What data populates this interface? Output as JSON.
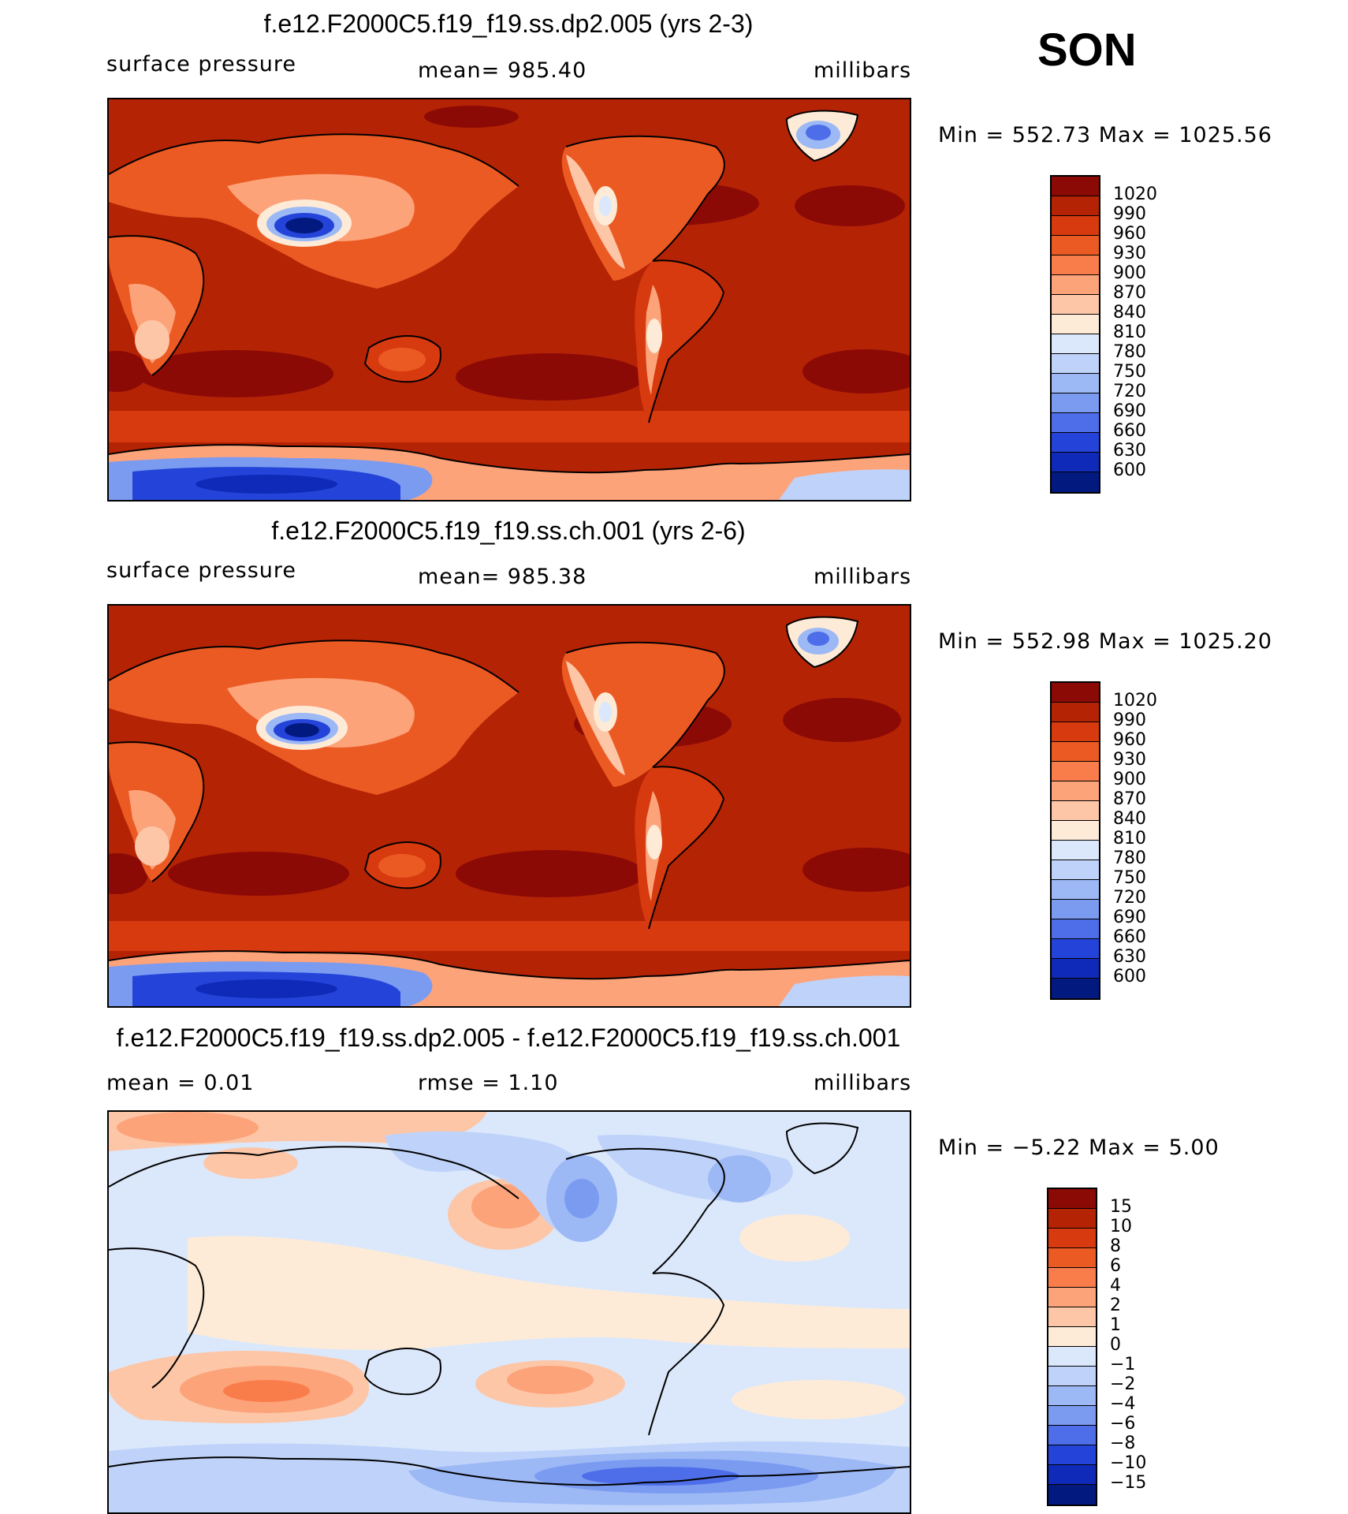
{
  "season": "SON",
  "units": "millibars",
  "panels": [
    {
      "title": "f.e12.F2000C5.f19_f19.ss.dp2.005 (yrs 2-3)",
      "left_label": "surface pressure",
      "center_label": "mean=  985.40",
      "right_label": "millibars",
      "minmax": "Min  =  552.73  Max  =  1025.56",
      "levels": [
        "1020",
        "990",
        "960",
        "930",
        "900",
        "870",
        "840",
        "810",
        "780",
        "750",
        "720",
        "690",
        "660",
        "630",
        "600"
      ],
      "colors": [
        "#8c0a06",
        "#b52305",
        "#d73a0f",
        "#ec5a23",
        "#f97d4b",
        "#fca37a",
        "#fdc6a7",
        "#fdebd8",
        "#dbe8fb",
        "#bfd3fa",
        "#9cb8f5",
        "#7a9bf0",
        "#4d6ee8",
        "#2444d9",
        "#0f2ab8",
        "#021a80"
      ]
    },
    {
      "title": "f.e12.F2000C5.f19_f19.ss.ch.001 (yrs 2-6)",
      "left_label": "surface pressure",
      "center_label": "mean=  985.38",
      "right_label": "millibars",
      "minmax": "Min  =  552.98  Max  =  1025.20",
      "levels": [
        "1020",
        "990",
        "960",
        "930",
        "900",
        "870",
        "840",
        "810",
        "780",
        "750",
        "720",
        "690",
        "660",
        "630",
        "600"
      ],
      "colors": [
        "#8c0a06",
        "#b52305",
        "#d73a0f",
        "#ec5a23",
        "#f97d4b",
        "#fca37a",
        "#fdc6a7",
        "#fdebd8",
        "#dbe8fb",
        "#bfd3fa",
        "#9cb8f5",
        "#7a9bf0",
        "#4d6ee8",
        "#2444d9",
        "#0f2ab8",
        "#021a80"
      ]
    },
    {
      "title": "f.e12.F2000C5.f19_f19.ss.dp2.005 - f.e12.F2000C5.f19_f19.ss.ch.001",
      "left_label": "mean =     0.01",
      "center_label": "rmse =     1.10",
      "right_label": "millibars",
      "minmax": "Min  =   −5.22  Max  =     5.00",
      "levels": [
        "15",
        "10",
        "8",
        "6",
        "4",
        "2",
        "1",
        "0",
        "−1",
        "−2",
        "−4",
        "−6",
        "−8",
        "−10",
        "−15"
      ],
      "colors": [
        "#8c0a06",
        "#b52305",
        "#d73a0f",
        "#ec5a23",
        "#f97d4b",
        "#fca37a",
        "#fdc6a7",
        "#fdebd8",
        "#dbe8fb",
        "#bfd3fa",
        "#9cb8f5",
        "#7a9bf0",
        "#4d6ee8",
        "#2444d9",
        "#0f2ab8",
        "#021a80"
      ]
    }
  ]
}
